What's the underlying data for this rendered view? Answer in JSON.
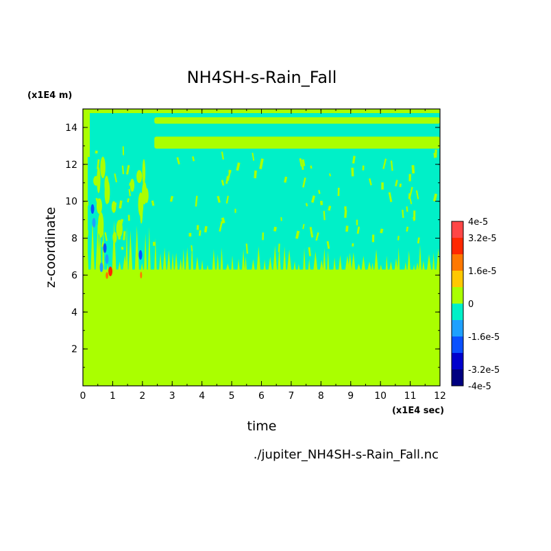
{
  "chart_data": {
    "type": "heatmap",
    "title": "NH4SH-s-Rain_Fall",
    "xlabel": "time",
    "ylabel": "z-coordinate",
    "x_unit": "(x1E4 sec)",
    "y_unit": "(x1E4 m)",
    "xlim": [
      0,
      12
    ],
    "ylim": [
      0,
      15
    ],
    "x_ticks": [
      "0",
      "1",
      "2",
      "3",
      "4",
      "5",
      "6",
      "7",
      "8",
      "9",
      "10",
      "11",
      "12"
    ],
    "y_ticks": [
      "2",
      "4",
      "6",
      "8",
      "10",
      "12",
      "14"
    ],
    "colorbar": {
      "range": [
        -4e-05,
        4e-05
      ],
      "tick_labels": [
        "4e-5",
        "3.2e-5",
        "1.6e-5",
        "0",
        "-1.6e-5",
        "-3.2e-5",
        "-4e-5"
      ],
      "colors": [
        "#000080",
        "#0000cd",
        "#0a50ff",
        "#1ea0ff",
        "#00f0c8",
        "#aaff00",
        "#ffc800",
        "#ff7800",
        "#ff2800",
        "#ff4646"
      ]
    },
    "regions": [
      {
        "name": "lower layer",
        "z_range": [
          0,
          6.3
        ],
        "value": 0,
        "color": "#aaff00"
      },
      {
        "name": "upper layer",
        "z_range": [
          6.3,
          14.7
        ],
        "value": -8e-06,
        "color": "#00f0c8"
      },
      {
        "name": "band",
        "x_range": [
          2.4,
          12
        ],
        "z_range": [
          14.2,
          14.55
        ],
        "value": 0,
        "color": "#aaff00"
      },
      {
        "name": "band",
        "x_range": [
          2.4,
          12
        ],
        "z_range": [
          12.85,
          13.5
        ],
        "value": 0,
        "color": "#aaff00"
      },
      {
        "name": "local extreme",
        "x": 0.9,
        "z": 6.2,
        "value": 3.6e-05,
        "color": "#ff2800"
      }
    ],
    "grid": false,
    "legend": "colorbar-right"
  },
  "footer": {
    "source_file": "./jupiter_NH4SH-s-Rain_Fall.nc"
  }
}
